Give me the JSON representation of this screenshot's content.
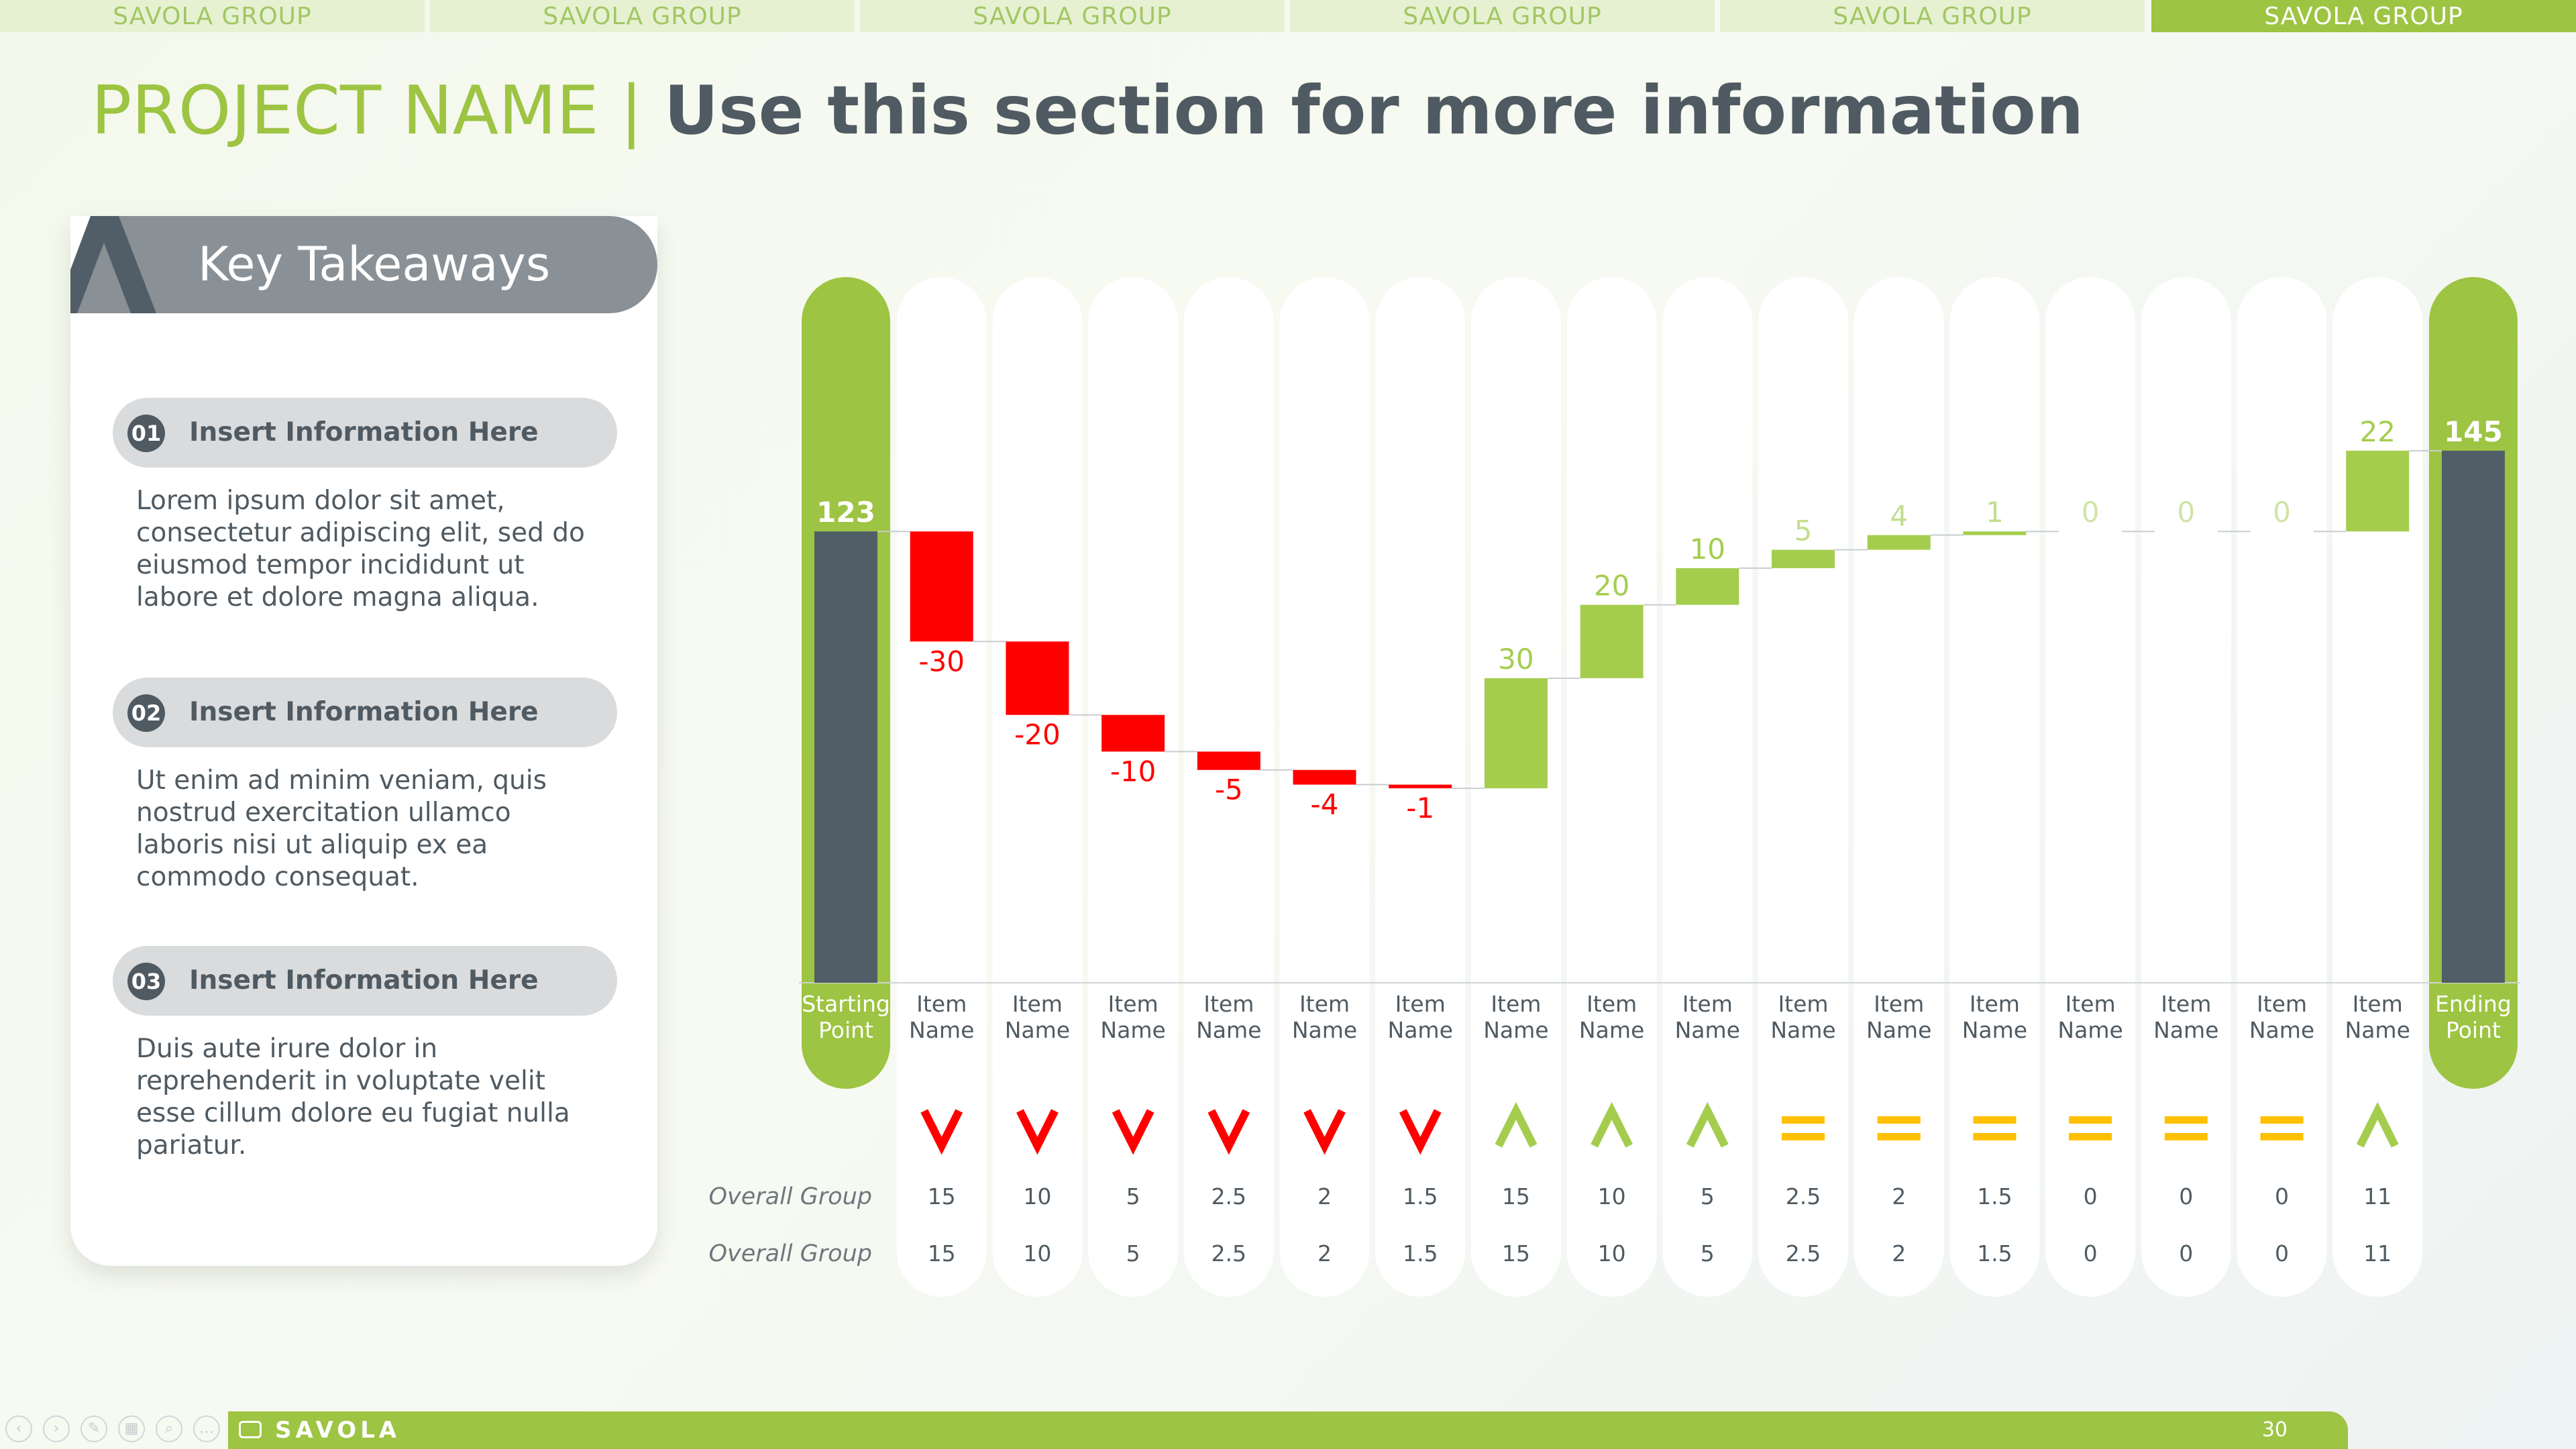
{
  "nav": {
    "tabs": [
      {
        "label": "SAVOLA GROUP",
        "active": false
      },
      {
        "label": "SAVOLA GROUP",
        "active": false
      },
      {
        "label": "SAVOLA GROUP",
        "active": false
      },
      {
        "label": "SAVOLA GROUP",
        "active": false
      },
      {
        "label": "SAVOLA GROUP",
        "active": false
      },
      {
        "label": "SAVOLA GROUP",
        "active": true
      }
    ]
  },
  "header": {
    "title_accent": "PROJECT NAME",
    "separator": "|",
    "title_rest": "Use this section for more information"
  },
  "takeaways": {
    "heading": "Key Takeaways",
    "items": [
      {
        "num": "01",
        "title": "Insert Information Here",
        "body": "Lorem ipsum dolor sit amet, consectetur adipiscing elit, sed do eiusmod tempor incididunt ut labore et dolore magna aliqua."
      },
      {
        "num": "02",
        "title": "Insert Information Here",
        "body": "Ut enim ad minim veniam, quis nostrud exercitation ullamco laboris nisi ut aliquip ex ea commodo consequat."
      },
      {
        "num": "03",
        "title": "Insert Information Here",
        "body": "Duis aute irure dolor in reprehenderit in voluptate velit esse cillum dolore eu fugiat nulla pariatur."
      }
    ]
  },
  "colors": {
    "brand_green": "#9dc442",
    "positive": "#a4cd4e",
    "negative": "#ff0000",
    "neutral": "#ffc000",
    "total_bar": "#525e67",
    "text_dark": "#4f5a62"
  },
  "chart_data": {
    "type": "bar",
    "subtype": "waterfall",
    "start": {
      "label": "Starting Point",
      "value": 123
    },
    "end": {
      "label": "Ending Point",
      "value": 145
    },
    "categories": [
      "Item Name",
      "Item Name",
      "Item Name",
      "Item Name",
      "Item Name",
      "Item Name",
      "Item Name",
      "Item Name",
      "Item Name",
      "Item Name",
      "Item Name",
      "Item Name",
      "Item Name",
      "Item Name",
      "Item Name",
      "Item Name"
    ],
    "deltas": [
      -30,
      -20,
      -10,
      -5,
      -4,
      -1,
      30,
      20,
      10,
      5,
      4,
      1,
      0,
      0,
      0,
      22
    ],
    "indicators": [
      "down",
      "down",
      "down",
      "down",
      "down",
      "down",
      "up",
      "up",
      "up",
      "equal",
      "equal",
      "equal",
      "equal",
      "equal",
      "equal",
      "up"
    ],
    "rows": [
      {
        "label": "Overall Group",
        "values": [
          "15",
          "10",
          "5",
          "2.5",
          "2",
          "1.5",
          "15",
          "10",
          "5",
          "2.5",
          "2",
          "1.5",
          "0",
          "0",
          "0",
          "11"
        ]
      },
      {
        "label": "Overall Group",
        "values": [
          "15",
          "10",
          "5",
          "2.5",
          "2",
          "1.5",
          "15",
          "10",
          "5",
          "2.5",
          "2",
          "1.5",
          "0",
          "0",
          "0",
          "11"
        ]
      }
    ]
  },
  "footer": {
    "logo_text": "SAVOLA",
    "page_number": "30"
  }
}
